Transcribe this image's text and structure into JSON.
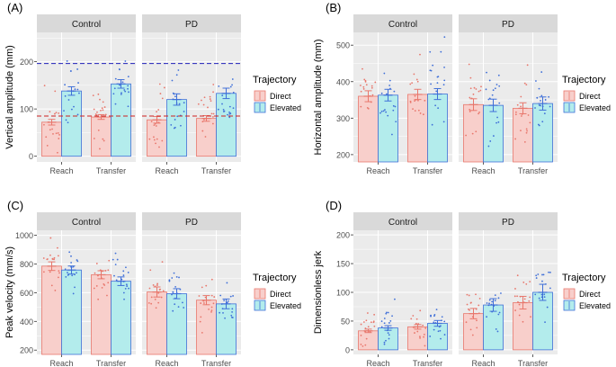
{
  "figure": {
    "legend_title": "Trajectory",
    "legend_items": [
      {
        "key": "direct",
        "label": "Direct"
      },
      {
        "key": "elevated",
        "label": "Elevated"
      }
    ],
    "colors": {
      "direct_fill": "#f8cfcb",
      "direct_line": "#e8776c",
      "elevated_fill": "#b3ecec",
      "elevated_line": "#3f6fd8",
      "panel_bg": "#ebebeb",
      "strip_bg": "#d9d9d9",
      "grid": "#ffffff",
      "ref_line_direct": "#cc2222",
      "ref_line_elevated": "#2222bb"
    }
  },
  "chart_data": [
    {
      "id": "A",
      "panel_label": "(A)",
      "type": "bar",
      "ylabel": "Vertical amplitude (mm)",
      "ylim": [
        -12,
        262
      ],
      "yticks": [
        0,
        100,
        200
      ],
      "facets": [
        "Control",
        "PD"
      ],
      "categories": [
        "Reach",
        "Transfer"
      ],
      "series": [
        {
          "name": "Direct",
          "values": {
            "Control": [
              72,
              83
            ],
            "PD": [
              77,
              80
            ]
          },
          "se": {
            "Control": [
              6,
              5
            ],
            "PD": [
              7,
              6
            ]
          }
        },
        {
          "name": "Elevated",
          "values": {
            "Control": [
              138,
              153
            ],
            "PD": [
              120,
              133
            ]
          },
          "se": {
            "Control": [
              9,
              9
            ],
            "PD": [
              12,
              11
            ]
          }
        }
      ],
      "ref_lines": [
        {
          "value": 85,
          "series": "Direct"
        },
        {
          "value": 196,
          "series": "Elevated"
        }
      ],
      "point_spread": 75,
      "ymin_points": 5
    },
    {
      "id": "B",
      "panel_label": "(B)",
      "type": "bar",
      "ylabel": "Horizontal amplitude (mm)",
      "ylim": [
        180,
        535
      ],
      "yticks": [
        200,
        300,
        400,
        500
      ],
      "facets": [
        "Control",
        "PD"
      ],
      "categories": [
        "Reach",
        "Transfer"
      ],
      "series": [
        {
          "name": "Direct",
          "values": {
            "Control": [
              360,
              365
            ],
            "PD": [
              337,
              327
            ]
          },
          "se": {
            "Control": [
              15,
              14
            ],
            "PD": [
              16,
              15
            ]
          }
        },
        {
          "name": "Elevated",
          "values": {
            "Control": [
              363,
              366
            ],
            "PD": [
              335,
              340
            ]
          },
          "se": {
            "Control": [
              16,
              15
            ],
            "PD": [
              17,
              18
            ]
          }
        }
      ],
      "point_spread": 110,
      "ymin_points": 200
    },
    {
      "id": "C",
      "panel_label": "(C)",
      "type": "bar",
      "ylabel": "Peak velocity (mm/s)",
      "ylim": [
        170,
        1035
      ],
      "yticks": [
        200,
        400,
        600,
        800,
        1000
      ],
      "facets": [
        "Control",
        "PD"
      ],
      "categories": [
        "Reach",
        "Transfer"
      ],
      "series": [
        {
          "name": "Direct",
          "values": {
            "Control": [
              785,
              725
            ],
            "PD": [
              605,
              548
            ]
          },
          "se": {
            "Control": [
              30,
              28
            ],
            "PD": [
              35,
              32
            ]
          }
        },
        {
          "name": "Elevated",
          "values": {
            "Control": [
              758,
              680
            ],
            "PD": [
              593,
              522
            ]
          },
          "se": {
            "Control": [
              28,
              30
            ],
            "PD": [
              35,
              34
            ]
          }
        }
      ],
      "point_spread": 170,
      "ymin_points": 250
    },
    {
      "id": "D",
      "panel_label": "(D)",
      "type": "bar",
      "ylabel": "Dimensionless jerk",
      "ylim": [
        -8,
        208
      ],
      "yticks": [
        0,
        50,
        100,
        150,
        200
      ],
      "facets": [
        "Control",
        "PD"
      ],
      "categories": [
        "Reach",
        "Transfer"
      ],
      "series": [
        {
          "name": "Direct",
          "values": {
            "Control": [
              33,
              40
            ],
            "PD": [
              63,
              82
            ]
          },
          "se": {
            "Control": [
              3,
              4
            ],
            "PD": [
              9,
              11
            ]
          }
        },
        {
          "name": "Elevated",
          "values": {
            "Control": [
              38,
              46
            ],
            "PD": [
              78,
              100
            ]
          },
          "se": {
            "Control": [
              4,
              5
            ],
            "PD": [
              11,
              14
            ]
          }
        }
      ],
      "point_spread": 40,
      "ymin_points": 5
    }
  ]
}
